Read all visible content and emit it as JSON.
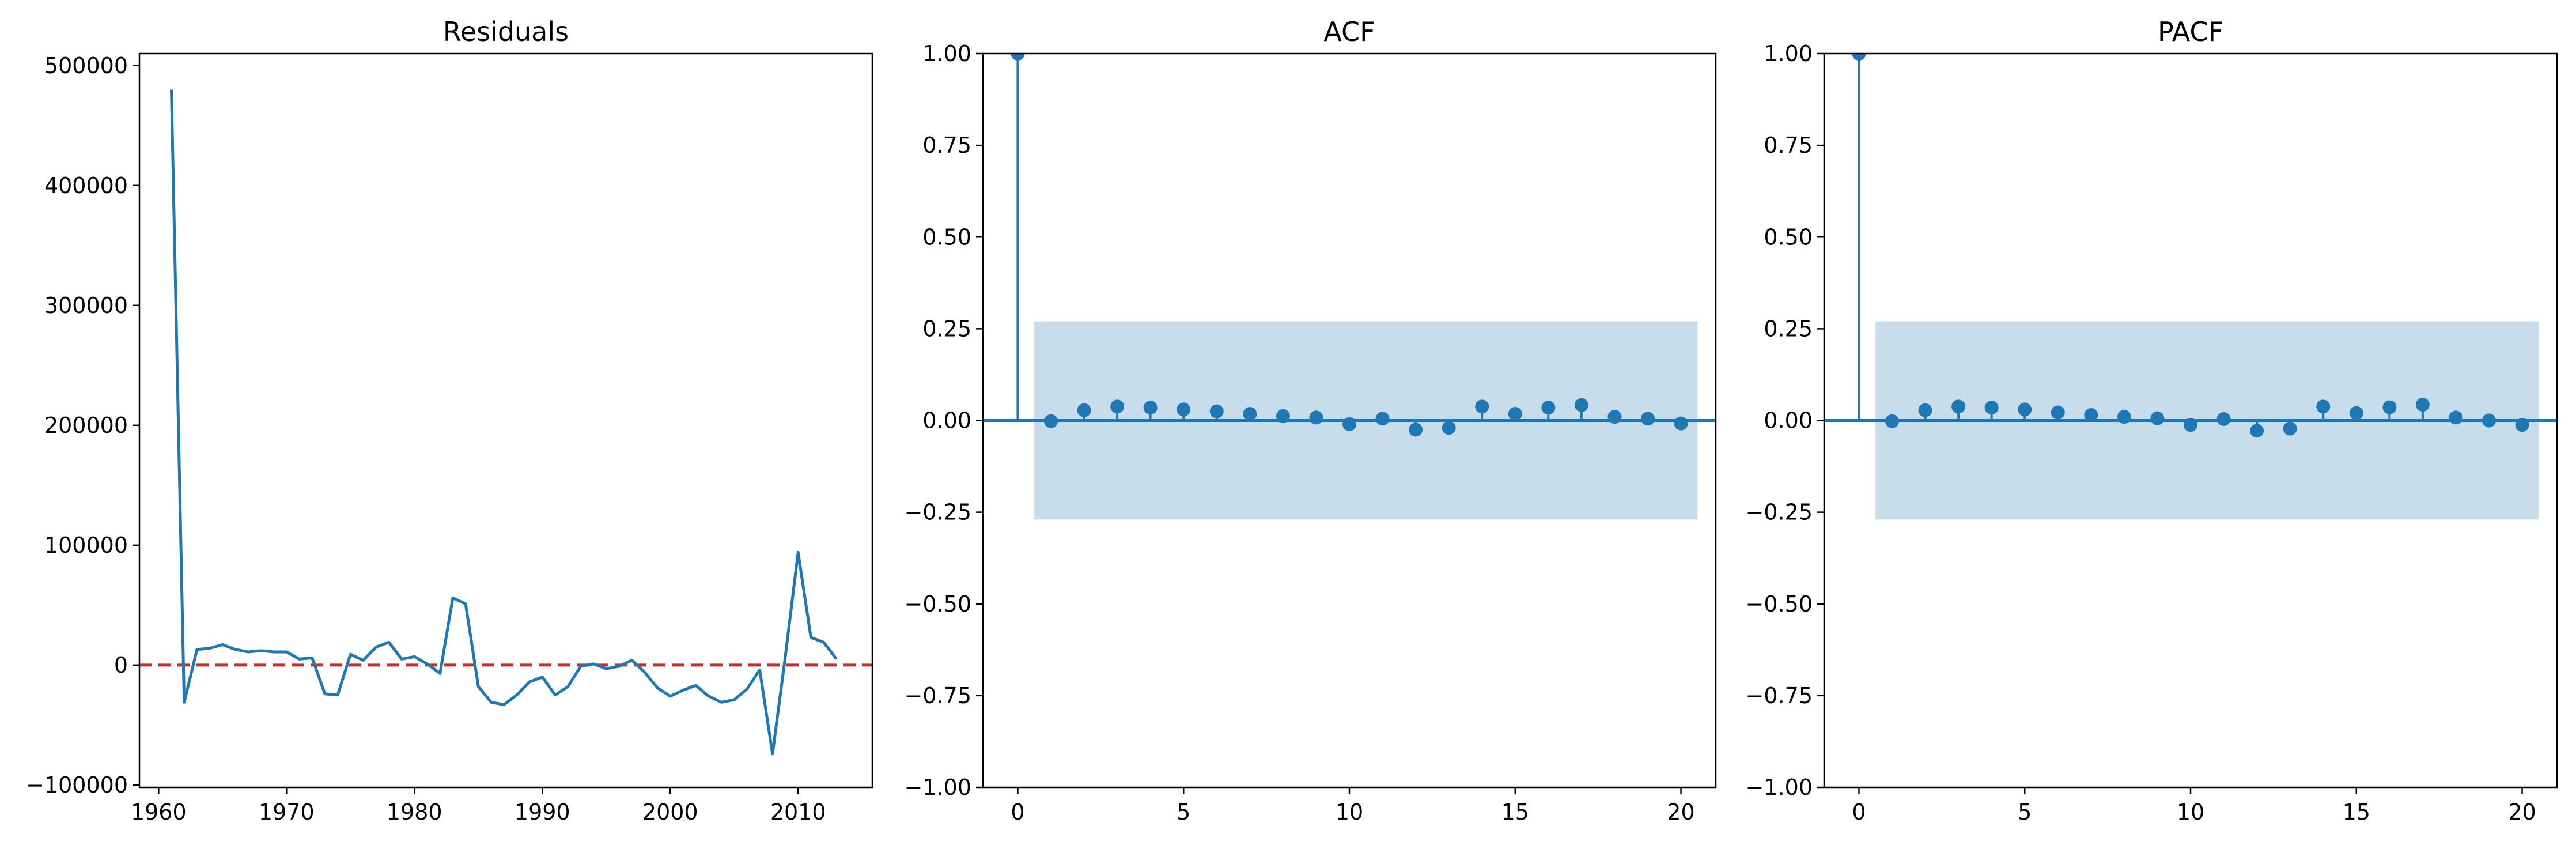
{
  "colors": {
    "line": "#1f77b4",
    "zero_line": "#d62728",
    "conf_band": "#1f77b4"
  },
  "chart_data": [
    {
      "type": "line",
      "title": "Residuals",
      "xlabel": "",
      "ylabel": "",
      "xlim": [
        1958.5,
        2015.8
      ],
      "ylim": [
        -102000,
        510000
      ],
      "xticks": [
        "1960",
        "1970",
        "1980",
        "1990",
        "2000",
        "2010"
      ],
      "yticks": [
        "−100000",
        "0",
        "100000",
        "200000",
        "300000",
        "400000",
        "500000"
      ],
      "reference_line": {
        "y": 0,
        "style": "dashed",
        "color": "#d62728"
      },
      "series": [
        {
          "x": [
            1961,
            1962,
            1963,
            1964,
            1965,
            1966,
            1967,
            1968,
            1969,
            1970,
            1971,
            1972,
            1973,
            1974,
            1975,
            1976,
            1977,
            1978,
            1979,
            1980,
            1981,
            1982,
            1983,
            1984,
            1985,
            1986,
            1987,
            1988,
            1989,
            1990,
            1991,
            1992,
            1993,
            1994,
            1995,
            1996,
            1997,
            1998,
            1999,
            2000,
            2001,
            2002,
            2003,
            2004,
            2005,
            2006,
            2007,
            2008,
            2009,
            2010,
            2011,
            2012,
            2013
          ],
          "values": [
            480000,
            -31000,
            13000,
            14000,
            17000,
            13000,
            11000,
            12000,
            11000,
            11000,
            5000,
            6000,
            -24000,
            -25000,
            9000,
            4000,
            15000,
            19000,
            5000,
            7000,
            1000,
            -7000,
            56000,
            51000,
            -18000,
            -31000,
            -33000,
            -25000,
            -14000,
            -10000,
            -25000,
            -18000,
            -1000,
            1000,
            -3000,
            -1000,
            4000,
            -6000,
            -19000,
            -26000,
            -21000,
            -17000,
            -26000,
            -31000,
            -29000,
            -20000,
            -4000,
            -74000,
            7000,
            94000,
            23000,
            19000,
            5000
          ]
        }
      ]
    },
    {
      "type": "stem",
      "title": "ACF",
      "xlabel": "",
      "ylabel": "",
      "xlim": [
        -1.05,
        21.05
      ],
      "ylim": [
        -1.0,
        1.0
      ],
      "xticks": [
        0,
        5,
        10,
        15,
        20
      ],
      "yticks": [
        "−1.00",
        "−0.75",
        "−0.50",
        "−0.25",
        "0.00",
        "0.25",
        "0.50",
        "0.75",
        "1.00"
      ],
      "confidence_band": {
        "x": [
          0.5,
          20.5
        ],
        "lower": -0.27,
        "upper": 0.27
      },
      "lags": [
        0,
        1,
        2,
        3,
        4,
        5,
        6,
        7,
        8,
        9,
        10,
        11,
        12,
        13,
        14,
        15,
        16,
        17,
        18,
        19,
        20
      ],
      "values": [
        1.0,
        -0.002,
        0.028,
        0.038,
        0.035,
        0.03,
        0.025,
        0.018,
        0.012,
        0.008,
        -0.01,
        0.005,
        -0.025,
        -0.02,
        0.038,
        0.018,
        0.035,
        0.042,
        0.01,
        0.005,
        -0.008
      ]
    },
    {
      "type": "stem",
      "title": "PACF",
      "xlabel": "",
      "ylabel": "",
      "xlim": [
        -1.05,
        21.05
      ],
      "ylim": [
        -1.0,
        1.0
      ],
      "xticks": [
        0,
        5,
        10,
        15,
        20
      ],
      "yticks": [
        "−1.00",
        "−0.75",
        "−0.50",
        "−0.25",
        "0.00",
        "0.25",
        "0.50",
        "0.75",
        "1.00"
      ],
      "confidence_band": {
        "x": [
          0.5,
          20.5
        ],
        "lower": -0.27,
        "upper": 0.27
      },
      "lags": [
        0,
        1,
        2,
        3,
        4,
        5,
        6,
        7,
        8,
        9,
        10,
        11,
        12,
        13,
        14,
        15,
        16,
        17,
        18,
        19,
        20
      ],
      "values": [
        1.0,
        -0.002,
        0.028,
        0.038,
        0.035,
        0.03,
        0.022,
        0.015,
        0.01,
        0.006,
        -0.012,
        0.004,
        -0.028,
        -0.022,
        0.038,
        0.02,
        0.036,
        0.043,
        0.008,
        0.0,
        -0.012
      ]
    }
  ]
}
